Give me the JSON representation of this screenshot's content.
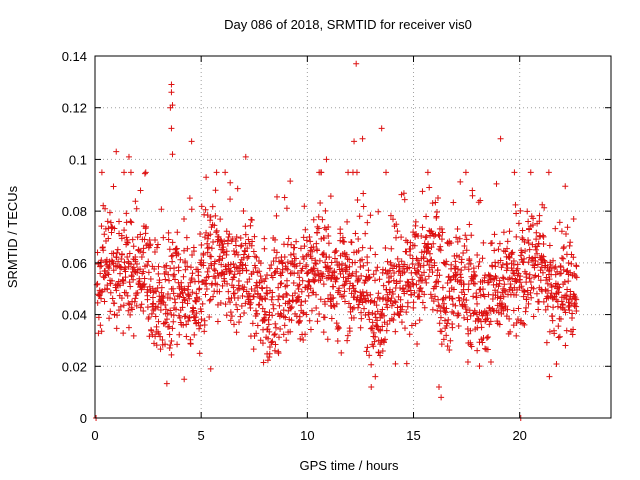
{
  "chart_data": {
    "type": "scatter",
    "title": "Day 086 of 2018, SRMTID for receiver vis0",
    "xlabel": "GPS time / hours",
    "ylabel": "SRMTID / TECUs",
    "xlim": [
      0,
      24.3
    ],
    "ylim": [
      0,
      0.14
    ],
    "xticks": [
      0,
      5,
      10,
      15,
      20
    ],
    "xtick_labels": [
      "0",
      "5",
      "10",
      "15",
      "20"
    ],
    "yticks": [
      0,
      0.02,
      0.04,
      0.06,
      0.08,
      0.1,
      0.12,
      0.14
    ],
    "ytick_labels": [
      "0",
      "0.02",
      "0.04",
      "0.06",
      "0.08",
      "0.1",
      "0.12",
      "0.14"
    ],
    "grid": true,
    "marker": "plus",
    "color": "#dd1111",
    "series": [
      {
        "name": "SRMTID",
        "note": "approx. 2100 points sampled over 0-22.7 h; baseline ~0.05 TECU with spread 0.01-0.09",
        "x_range": [
          0,
          22.7
        ],
        "n_points": 2100,
        "baseline": 0.052,
        "spread": 0.016,
        "notable_points": [
          {
            "x": 0.05,
            "y": 0.0
          },
          {
            "x": 20.05,
            "y": 0.0
          },
          {
            "x": 3.6,
            "y": 0.129
          },
          {
            "x": 3.6,
            "y": 0.126
          },
          {
            "x": 3.65,
            "y": 0.121
          },
          {
            "x": 3.55,
            "y": 0.12
          },
          {
            "x": 3.6,
            "y": 0.112
          },
          {
            "x": 3.65,
            "y": 0.102
          },
          {
            "x": 12.3,
            "y": 0.137
          },
          {
            "x": 13.5,
            "y": 0.112
          },
          {
            "x": 4.55,
            "y": 0.107
          },
          {
            "x": 19.1,
            "y": 0.108
          },
          {
            "x": 12.2,
            "y": 0.107
          },
          {
            "x": 12.6,
            "y": 0.108
          },
          {
            "x": 1.0,
            "y": 0.103
          },
          {
            "x": 1.6,
            "y": 0.101
          },
          {
            "x": 7.1,
            "y": 0.101
          },
          {
            "x": 10.9,
            "y": 0.1
          },
          {
            "x": 4.2,
            "y": 0.015
          },
          {
            "x": 16.3,
            "y": 0.008
          },
          {
            "x": 16.2,
            "y": 0.012
          },
          {
            "x": 13.2,
            "y": 0.016
          },
          {
            "x": 21.4,
            "y": 0.016
          },
          {
            "x": 5.45,
            "y": 0.019
          }
        ]
      }
    ]
  }
}
